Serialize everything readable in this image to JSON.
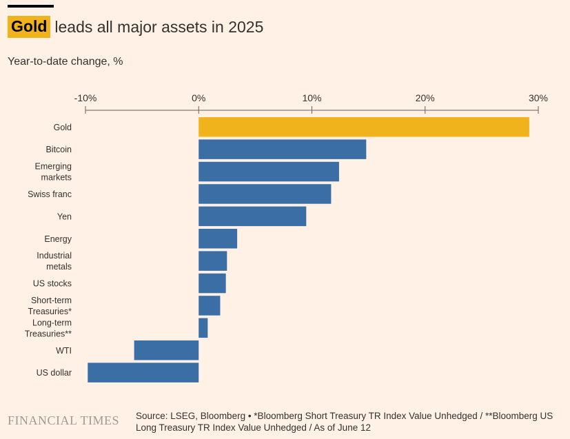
{
  "header": {
    "title_highlight": "Gold",
    "title_rest": "leads all major assets in 2025",
    "subtitle": "Year-to-date change, %"
  },
  "footer": {
    "logo": "FINANCIAL TIMES",
    "source": "Source: LSEG, Bloomberg • *Bloomberg Short Treasury TR Index Value Unhedged / **Bloomberg US Long Treasury TR Index Value Unhedged / As of June 12"
  },
  "colors": {
    "background": "#fff1e5",
    "highlight_bar": "#f0b31c",
    "bar": "#3b6ea5",
    "axis": "#66605c"
  },
  "chart_data": {
    "type": "bar",
    "orientation": "horizontal",
    "xlim": [
      -10,
      30
    ],
    "ticks": [
      -10,
      0,
      10,
      20,
      30
    ],
    "tick_labels": [
      "-10%",
      "0%",
      "10%",
      "20%",
      "30%"
    ],
    "categories": [
      [
        "Gold"
      ],
      [
        "Bitcoin"
      ],
      [
        "Emerging",
        "markets"
      ],
      [
        "Swiss franc"
      ],
      [
        "Yen"
      ],
      [
        "Energy"
      ],
      [
        "Industrial",
        "metals"
      ],
      [
        "US stocks"
      ],
      [
        "Short-term",
        "Treasuries*"
      ],
      [
        "Long-term",
        "Treasuries**"
      ],
      [
        "WTI"
      ],
      [
        "US dollar"
      ]
    ],
    "values": [
      29.2,
      14.8,
      12.4,
      11.7,
      9.5,
      3.4,
      2.5,
      2.4,
      1.9,
      0.8,
      -5.7,
      -9.8
    ],
    "highlight": [
      true,
      false,
      false,
      false,
      false,
      false,
      false,
      false,
      false,
      false,
      false,
      false
    ]
  }
}
